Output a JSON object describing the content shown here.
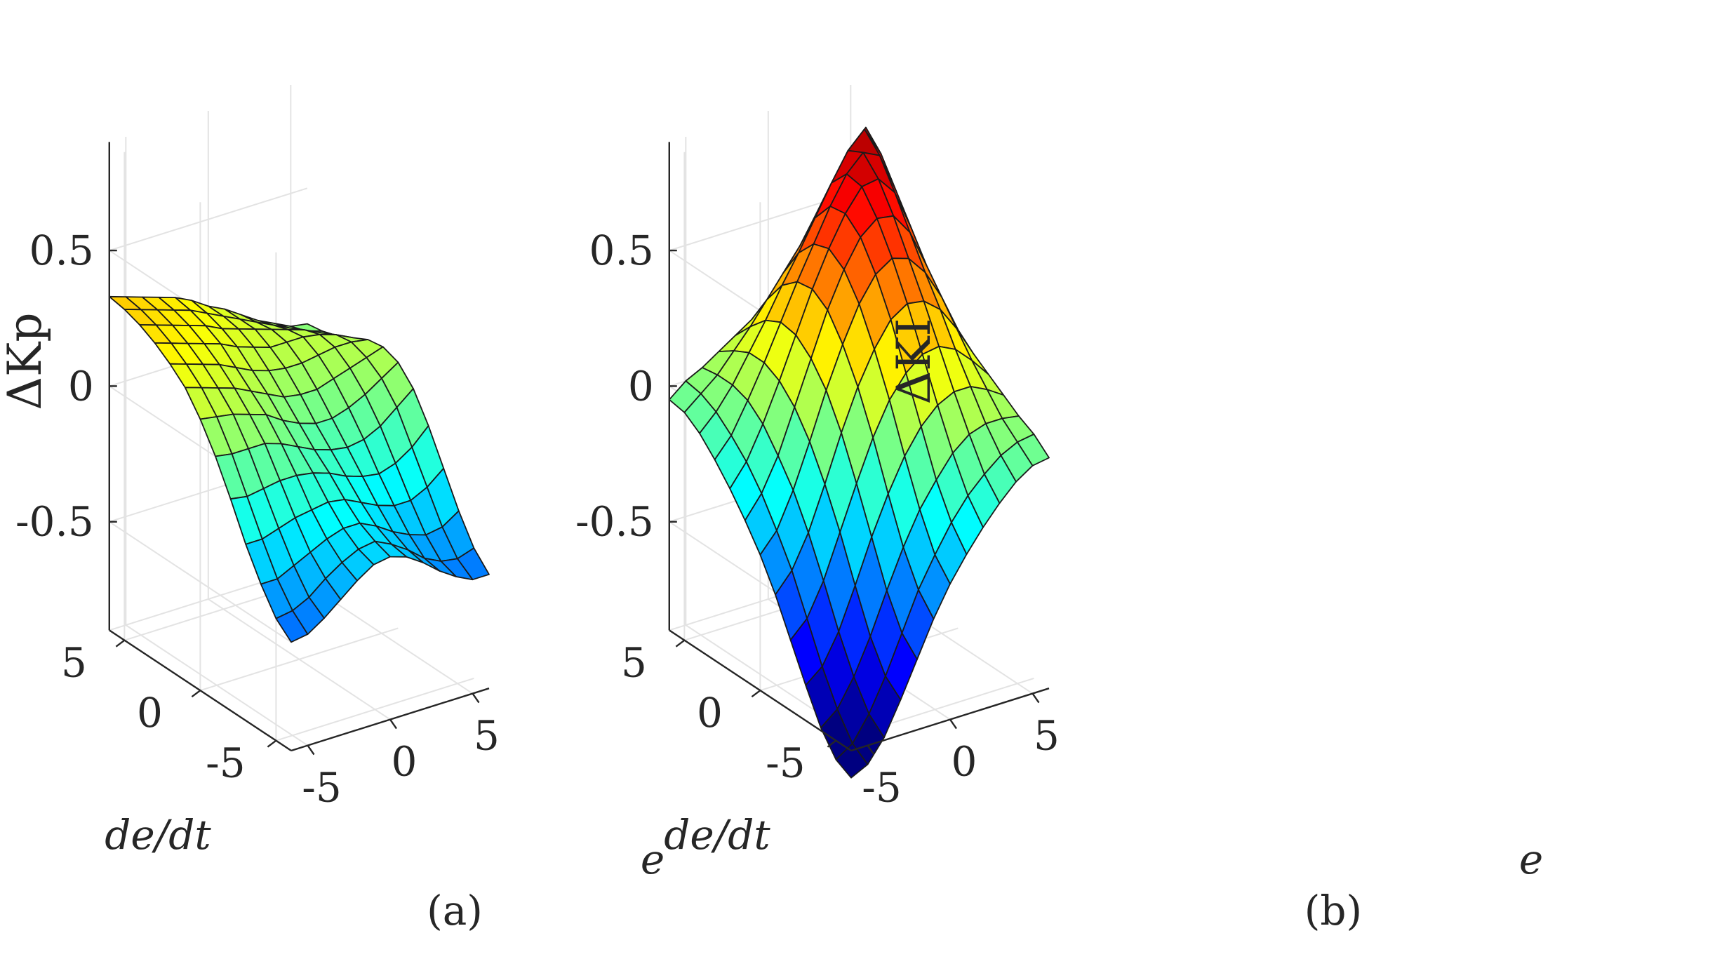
{
  "figure": {
    "panels": [
      "(a)",
      "(b)"
    ]
  },
  "chart_data": [
    {
      "type": "surface3d",
      "caption": "(a)",
      "title": "",
      "xlabel": "e",
      "ylabel": "de/dt",
      "zlabel": "ΔKp",
      "xlim": [
        -6,
        6
      ],
      "ylim": [
        -6,
        6
      ],
      "zlim": [
        -0.9,
        0.9
      ],
      "x_ticks": [
        "-5",
        "0",
        "5"
      ],
      "y_ticks": [
        "-5",
        "0",
        "5"
      ],
      "z_ticks": [
        "0.5",
        "0",
        "-0.5"
      ],
      "x": [
        -6,
        -5,
        -4,
        -3,
        -2,
        -1,
        0,
        1,
        2,
        3,
        4,
        5,
        6
      ],
      "y": [
        -6,
        -5,
        -4,
        -3,
        -2,
        -1,
        0,
        1,
        2,
        3,
        4,
        5,
        6
      ],
      "colormap": "jet",
      "z": [
        [
          -0.5,
          -0.49,
          -0.45,
          -0.4,
          -0.35,
          -0.31,
          -0.3,
          -0.32,
          -0.36,
          -0.41,
          -0.45,
          -0.48,
          -0.48
        ],
        [
          -0.45,
          -0.44,
          -0.41,
          -0.36,
          -0.32,
          -0.29,
          -0.28,
          -0.31,
          -0.35,
          -0.4,
          -0.43,
          -0.44,
          -0.42
        ],
        [
          -0.36,
          -0.36,
          -0.33,
          -0.3,
          -0.27,
          -0.25,
          -0.25,
          -0.28,
          -0.32,
          -0.35,
          -0.37,
          -0.36,
          -0.32
        ],
        [
          -0.25,
          -0.25,
          -0.23,
          -0.21,
          -0.2,
          -0.19,
          -0.2,
          -0.23,
          -0.26,
          -0.28,
          -0.28,
          -0.25,
          -0.2
        ],
        [
          -0.12,
          -0.13,
          -0.12,
          -0.11,
          -0.11,
          -0.12,
          -0.14,
          -0.17,
          -0.19,
          -0.2,
          -0.18,
          -0.14,
          -0.08
        ],
        [
          0.0,
          -0.01,
          -0.01,
          -0.01,
          -0.03,
          -0.06,
          -0.09,
          -0.11,
          -0.12,
          -0.11,
          -0.08,
          -0.03,
          0.02
        ],
        [
          0.1,
          0.09,
          0.08,
          0.06,
          0.04,
          0.0,
          -0.03,
          -0.05,
          -0.05,
          -0.03,
          0.0,
          0.04,
          0.08
        ],
        [
          0.18,
          0.16,
          0.14,
          0.12,
          0.09,
          0.06,
          0.03,
          0.02,
          0.02,
          0.04,
          0.06,
          0.08,
          0.1
        ],
        [
          0.23,
          0.21,
          0.19,
          0.17,
          0.14,
          0.11,
          0.09,
          0.08,
          0.08,
          0.09,
          0.1,
          0.1,
          0.09
        ],
        [
          0.27,
          0.25,
          0.23,
          0.21,
          0.19,
          0.16,
          0.14,
          0.12,
          0.12,
          0.12,
          0.11,
          0.09,
          0.06
        ],
        [
          0.3,
          0.28,
          0.26,
          0.24,
          0.22,
          0.19,
          0.17,
          0.15,
          0.13,
          0.11,
          0.09,
          0.06,
          0.03
        ],
        [
          0.32,
          0.3,
          0.28,
          0.26,
          0.24,
          0.21,
          0.18,
          0.15,
          0.12,
          0.09,
          0.06,
          0.03,
          0.01
        ],
        [
          0.33,
          0.31,
          0.29,
          0.27,
          0.25,
          0.22,
          0.18,
          0.15,
          0.11,
          0.07,
          0.04,
          0.01,
          0.0
        ]
      ]
    },
    {
      "type": "surface3d",
      "caption": "(b)",
      "title": "",
      "xlabel": "e",
      "ylabel": "de/dt",
      "zlabel": "ΔKI",
      "xlim": [
        -6,
        6
      ],
      "ylim": [
        -6,
        6
      ],
      "zlim": [
        -0.9,
        0.9
      ],
      "x_ticks": [
        "-5",
        "0",
        "5"
      ],
      "y_ticks": [
        "-5",
        "0",
        "5"
      ],
      "z_ticks": [
        "0.5",
        "0",
        "-0.5"
      ],
      "x": [
        -6,
        -5,
        -4,
        -3,
        -2,
        -1,
        0,
        1,
        2,
        3,
        4,
        5,
        6
      ],
      "y": [
        -6,
        -5,
        -4,
        -3,
        -2,
        -1,
        0,
        1,
        2,
        3,
        4,
        5,
        6
      ],
      "colormap": "jet",
      "z": [
        [
          -1.0,
          -0.97,
          -0.89,
          -0.77,
          -0.64,
          -0.51,
          -0.4,
          -0.31,
          -0.23,
          -0.16,
          -0.1,
          -0.06,
          -0.05
        ],
        [
          -0.97,
          -0.93,
          -0.84,
          -0.72,
          -0.58,
          -0.44,
          -0.33,
          -0.23,
          -0.15,
          -0.09,
          -0.04,
          -0.01,
          0.0
        ],
        [
          -0.89,
          -0.84,
          -0.74,
          -0.61,
          -0.46,
          -0.32,
          -0.2,
          -0.11,
          -0.03,
          0.02,
          0.04,
          0.04,
          0.03
        ],
        [
          -0.77,
          -0.72,
          -0.61,
          -0.46,
          -0.3,
          -0.16,
          -0.04,
          0.05,
          0.11,
          0.14,
          0.14,
          0.11,
          0.07
        ],
        [
          -0.64,
          -0.58,
          -0.46,
          -0.3,
          -0.14,
          0.01,
          0.13,
          0.21,
          0.26,
          0.27,
          0.24,
          0.18,
          0.11
        ],
        [
          -0.51,
          -0.44,
          -0.32,
          -0.16,
          0.01,
          0.16,
          0.28,
          0.37,
          0.41,
          0.4,
          0.35,
          0.26,
          0.15
        ],
        [
          -0.4,
          -0.33,
          -0.2,
          -0.04,
          0.13,
          0.28,
          0.41,
          0.5,
          0.54,
          0.52,
          0.45,
          0.34,
          0.2
        ],
        [
          -0.31,
          -0.23,
          -0.11,
          0.05,
          0.21,
          0.37,
          0.5,
          0.6,
          0.65,
          0.64,
          0.56,
          0.42,
          0.25
        ],
        [
          -0.23,
          -0.15,
          -0.03,
          0.11,
          0.26,
          0.41,
          0.54,
          0.65,
          0.73,
          0.74,
          0.67,
          0.52,
          0.32
        ],
        [
          -0.16,
          -0.09,
          0.02,
          0.14,
          0.27,
          0.4,
          0.52,
          0.64,
          0.74,
          0.8,
          0.77,
          0.62,
          0.4
        ],
        [
          -0.1,
          -0.04,
          0.04,
          0.14,
          0.24,
          0.35,
          0.45,
          0.56,
          0.67,
          0.77,
          0.83,
          0.72,
          0.48
        ],
        [
          -0.06,
          -0.01,
          0.04,
          0.11,
          0.18,
          0.26,
          0.34,
          0.42,
          0.52,
          0.62,
          0.72,
          0.78,
          0.55
        ],
        [
          -0.05,
          0.0,
          0.03,
          0.07,
          0.11,
          0.15,
          0.2,
          0.25,
          0.32,
          0.4,
          0.48,
          0.55,
          0.6
        ]
      ]
    }
  ]
}
